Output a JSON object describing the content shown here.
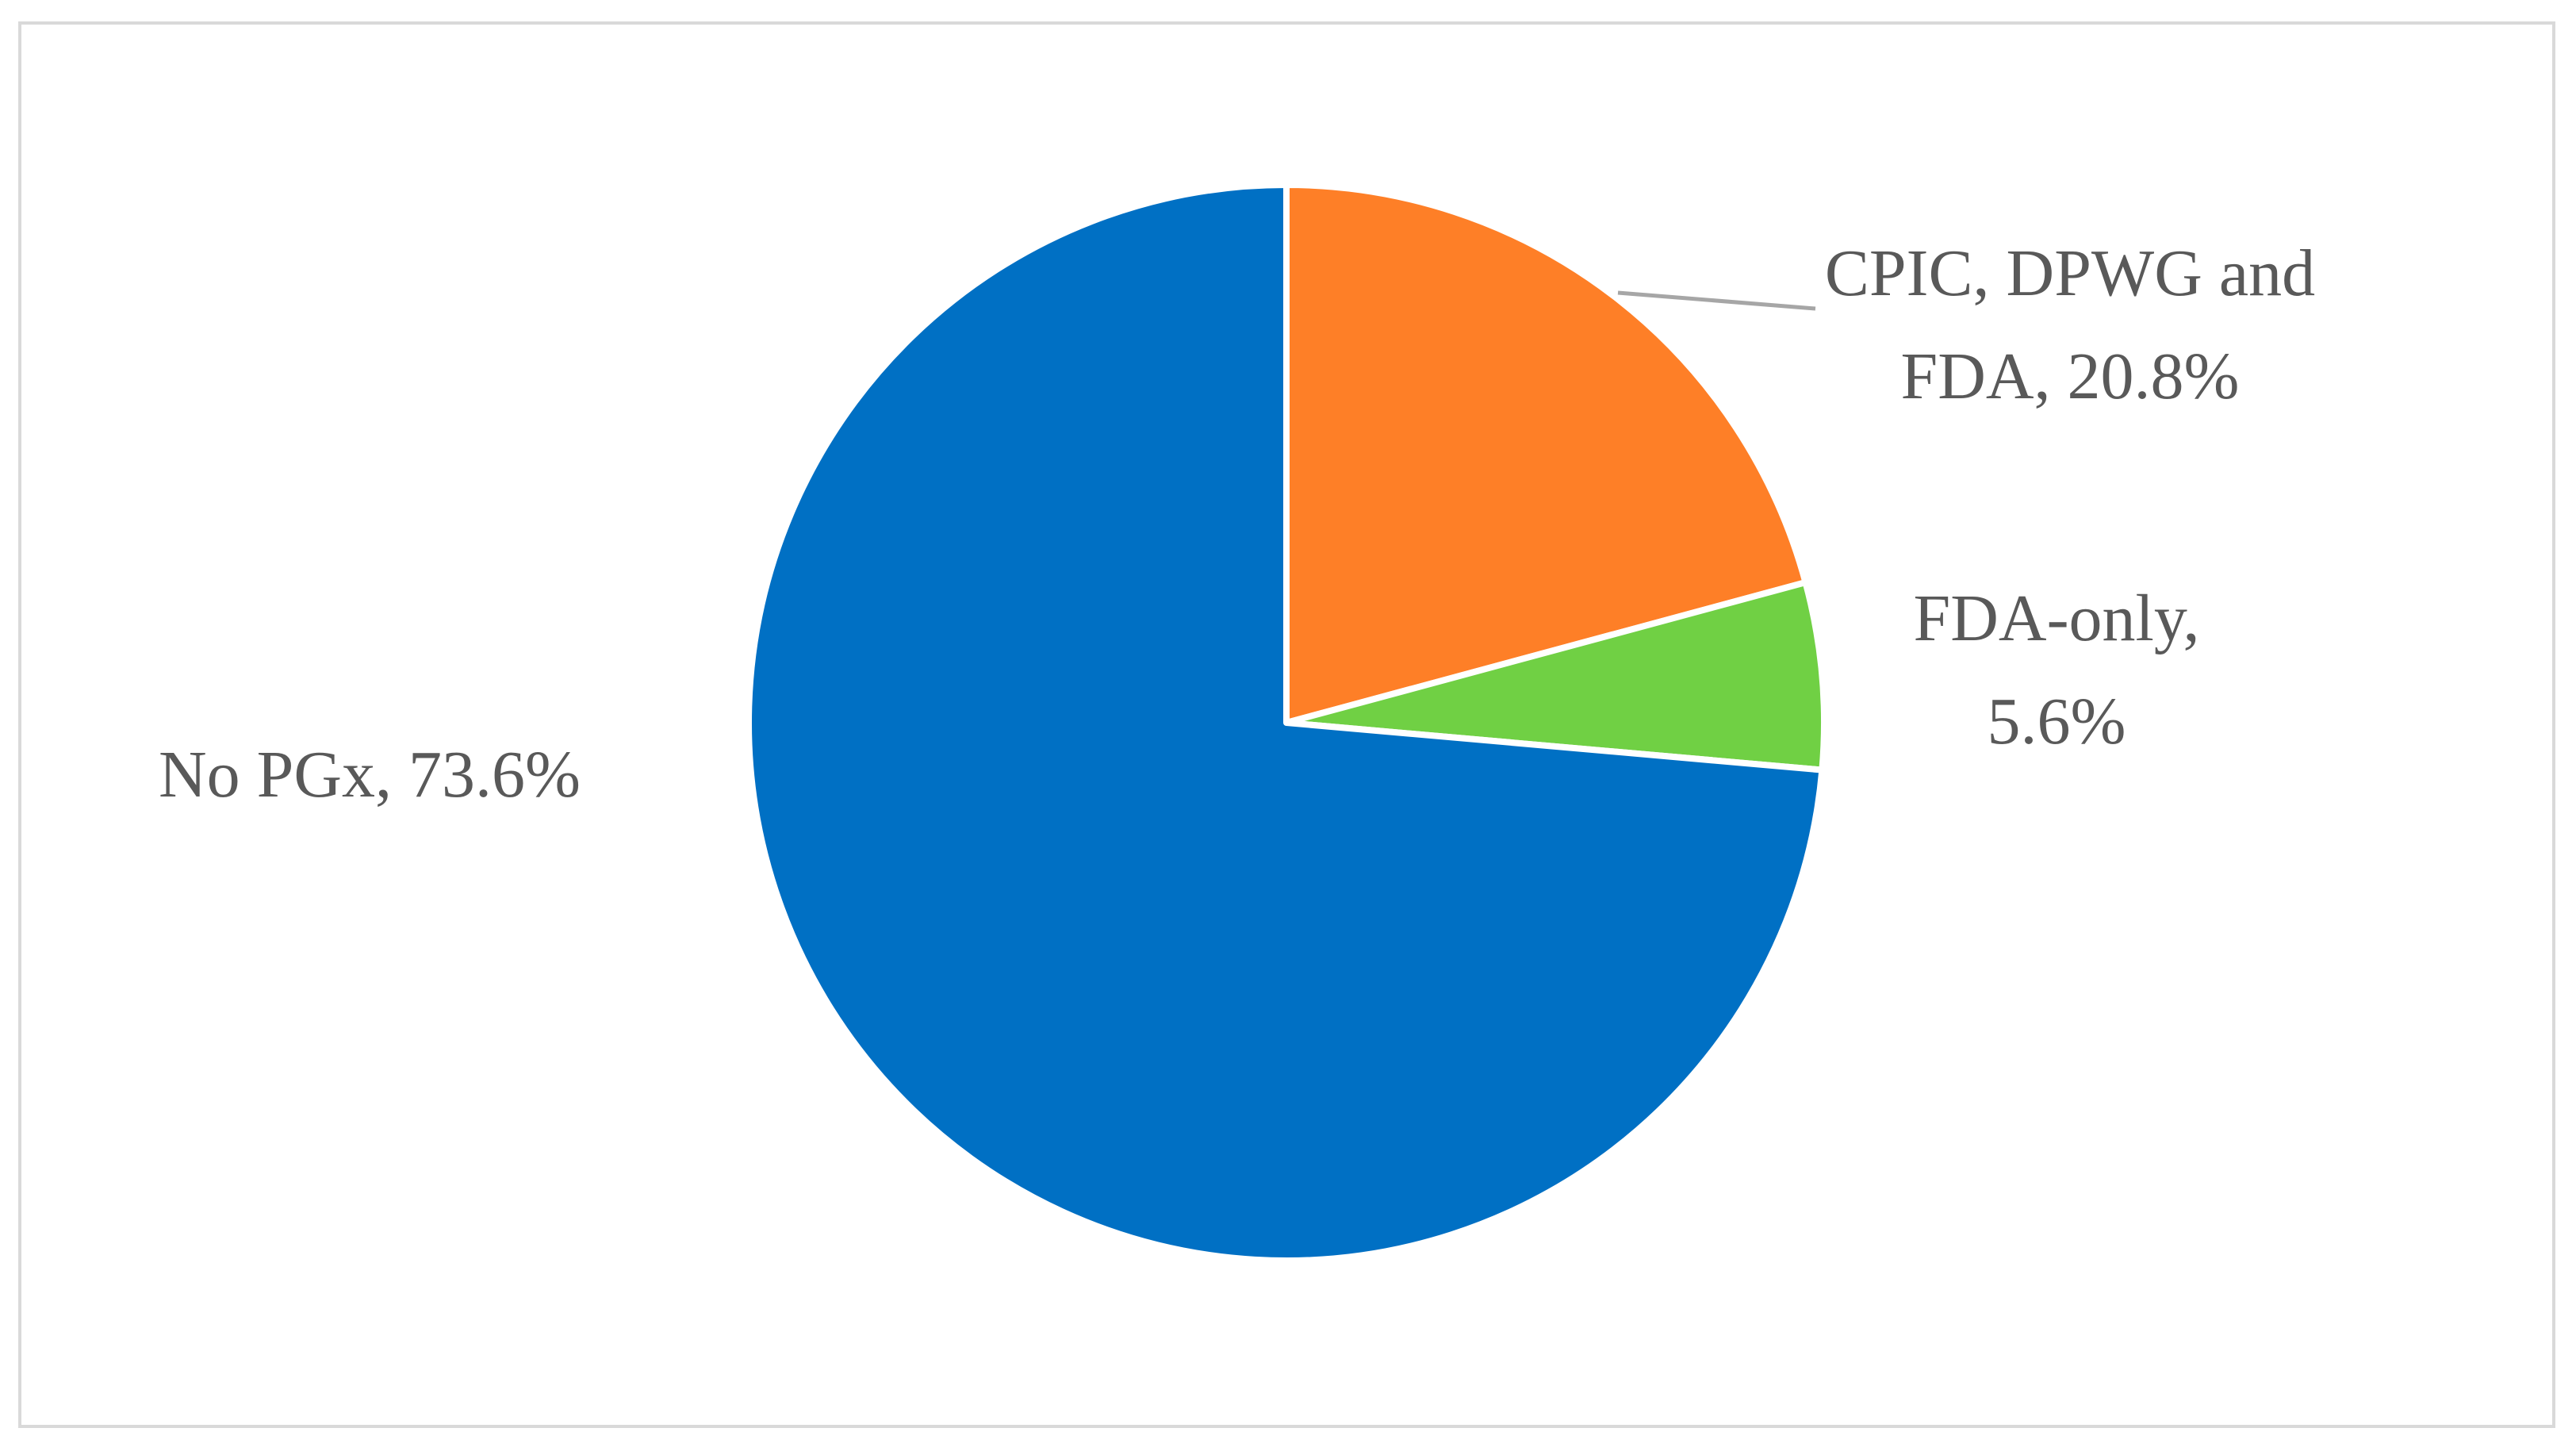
{
  "chart_data": {
    "type": "pie",
    "values": [
      20.8,
      5.6,
      73.6
    ],
    "value_labels": [
      "CPIC, DPWG and FDA, 20.8%",
      "FDA-only, 5.6%",
      "No PGx, 73.6%"
    ],
    "colors": [
      "#fe7f27",
      "#70d044",
      "#0070c4"
    ]
  }
}
